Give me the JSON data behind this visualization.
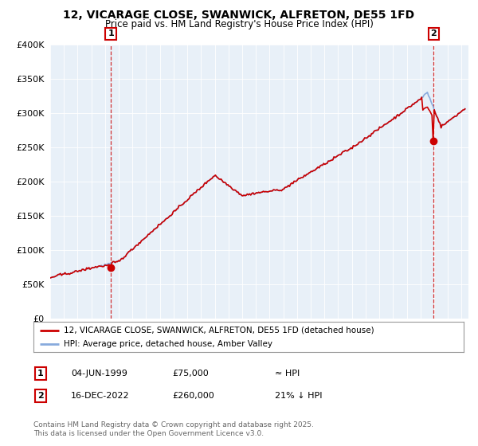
{
  "title_line1": "12, VICARAGE CLOSE, SWANWICK, ALFRETON, DE55 1FD",
  "title_line2": "Price paid vs. HM Land Registry's House Price Index (HPI)",
  "ylim": [
    0,
    400000
  ],
  "yticks": [
    0,
    50000,
    100000,
    150000,
    200000,
    250000,
    300000,
    350000,
    400000
  ],
  "xlim_start": 1995.0,
  "xlim_end": 2025.5,
  "sale1_date": 1999.42,
  "sale1_price": 75000,
  "sale2_date": 2022.96,
  "sale2_price": 260000,
  "sale1_label": "1",
  "sale2_label": "2",
  "line_color_red": "#cc0000",
  "line_color_blue": "#88aadd",
  "vline_color": "#cc0000",
  "bg_color": "#ffffff",
  "plot_bg_color": "#e8f0f8",
  "grid_color": "#ffffff",
  "legend_line1": "12, VICARAGE CLOSE, SWANWICK, ALFRETON, DE55 1FD (detached house)",
  "legend_line2": "HPI: Average price, detached house, Amber Valley",
  "table_row1": [
    "1",
    "04-JUN-1999",
    "£75,000",
    "≈ HPI"
  ],
  "table_row2": [
    "2",
    "16-DEC-2022",
    "£260,000",
    "21% ↓ HPI"
  ],
  "footnote": "Contains HM Land Registry data © Crown copyright and database right 2025.\nThis data is licensed under the Open Government Licence v3.0."
}
